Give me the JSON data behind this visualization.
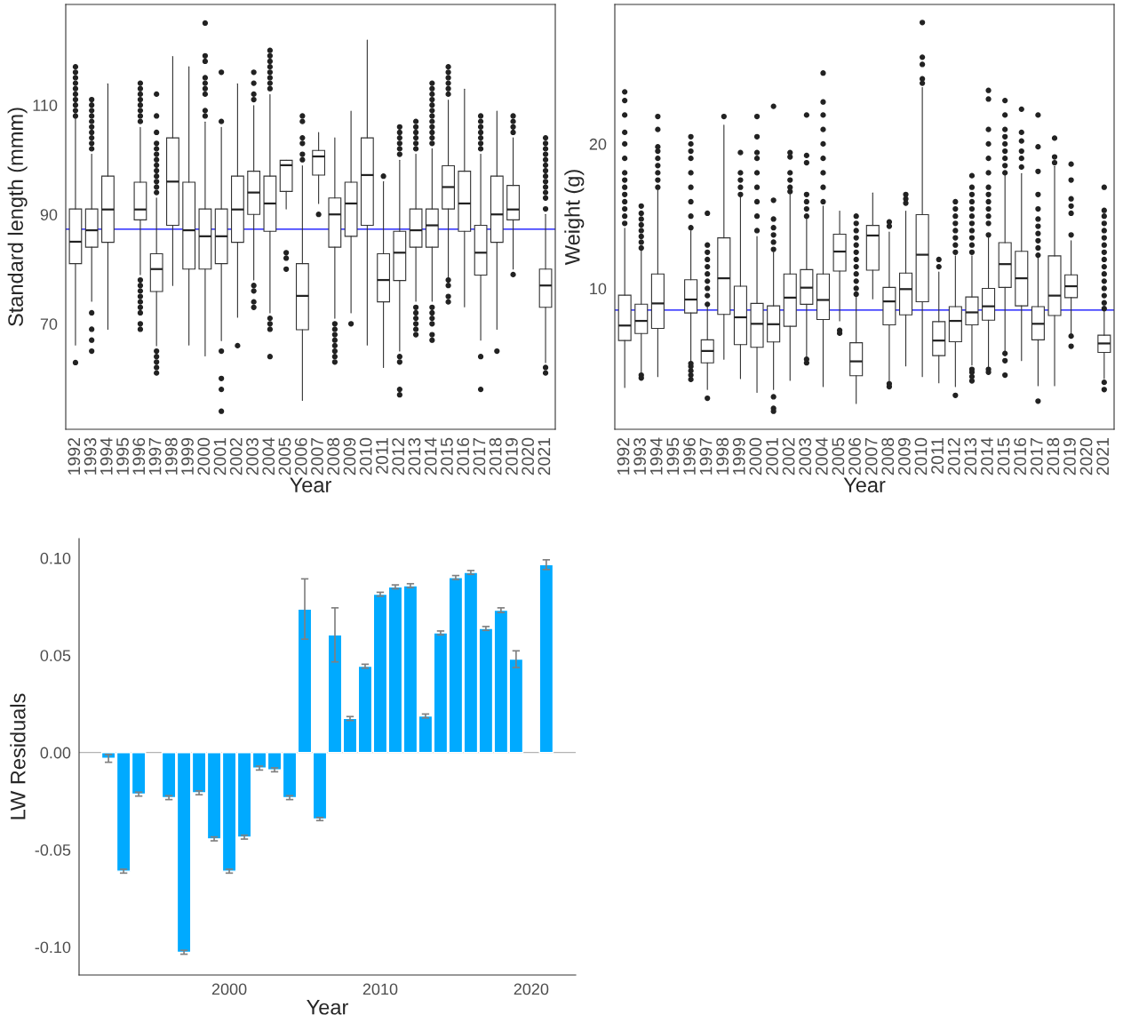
{
  "chart_data": [
    {
      "type": "box",
      "xlabel": "Year",
      "ylabel": "Standard length (mmm)",
      "grid": false,
      "categories": [
        "1992",
        "1993",
        "1994",
        "1995",
        "1996",
        "1997",
        "1998",
        "1999",
        "2000",
        "2001",
        "2002",
        "2003",
        "2004",
        "2005",
        "2006",
        "2007",
        "2008",
        "2009",
        "2010",
        "2011",
        "2012",
        "2013",
        "2014",
        "2015",
        "2016",
        "2017",
        "2018",
        "2019",
        "2020",
        "2021"
      ],
      "boxes": [
        {
          "low": 66.1,
          "q1": 81,
          "median": 85,
          "q3": 91,
          "high": 107.8,
          "outliers": [
            62.9,
            108,
            109,
            110,
            111,
            112,
            113,
            114,
            115,
            116,
            117
          ]
        },
        {
          "low": 74.1,
          "q1": 84,
          "median": 87.1,
          "q3": 91,
          "high": 101,
          "outliers": [
            65,
            67,
            69,
            72,
            102,
            103,
            104,
            105,
            106,
            107,
            108,
            109,
            110,
            111
          ]
        },
        {
          "low": 69,
          "q1": 84.9,
          "median": 90.9,
          "q3": 97,
          "high": 113.9
        },
        null,
        {
          "low": 79,
          "q1": 89,
          "median": 90.9,
          "q3": 95.9,
          "high": 105.9,
          "outliers": [
            69,
            70,
            72,
            73,
            74,
            75,
            76,
            77,
            78,
            107,
            108,
            109,
            110,
            111,
            112,
            113,
            114
          ]
        },
        {
          "low": 66,
          "q1": 75.9,
          "median": 80,
          "q3": 82.8,
          "high": 93,
          "outliers": [
            61,
            62,
            63,
            64,
            65,
            94,
            95,
            96,
            97,
            98,
            99,
            100,
            101,
            102,
            103,
            105,
            108,
            112
          ]
        },
        {
          "low": 77,
          "q1": 88,
          "median": 96,
          "q3": 104,
          "high": 118.9
        },
        {
          "low": 66.1,
          "q1": 80,
          "median": 87.1,
          "q3": 95.9,
          "high": 117
        },
        {
          "low": 64.1,
          "q1": 80,
          "median": 86,
          "q3": 91,
          "high": 106.9,
          "outliers": [
            108,
            109,
            112,
            113,
            114,
            115,
            118,
            119,
            125
          ]
        },
        {
          "low": 66.9,
          "q1": 81,
          "median": 86,
          "q3": 91,
          "high": 105.9,
          "outliers": [
            54,
            58,
            60,
            65,
            107,
            116
          ]
        },
        {
          "low": 71.2,
          "q1": 84.9,
          "median": 90.9,
          "q3": 97,
          "high": 113.9,
          "outliers": [
            66
          ]
        },
        {
          "low": 78,
          "q1": 90,
          "median": 94,
          "q3": 97.9,
          "high": 109.9,
          "outliers": [
            73,
            74,
            76,
            77,
            111,
            112,
            114,
            116
          ]
        },
        {
          "low": 72,
          "q1": 86.9,
          "median": 92,
          "q3": 97,
          "high": 111.9,
          "outliers": [
            64,
            69,
            70,
            71,
            113,
            114,
            115,
            116,
            117,
            118,
            119,
            120
          ]
        },
        {
          "low": 91,
          "q1": 94.2,
          "median": 99,
          "q3": 99.9,
          "high": 99.9,
          "outliers": [
            80,
            82,
            83
          ]
        },
        {
          "low": 56,
          "q1": 68.9,
          "median": 75.1,
          "q3": 81,
          "high": 98.9,
          "outliers": [
            100,
            101,
            103,
            104,
            107,
            108
          ]
        },
        {
          "low": 92,
          "q1": 97.2,
          "median": 100.6,
          "q3": 101.7,
          "high": 105,
          "outliers": [
            90
          ]
        },
        {
          "low": 71,
          "q1": 84,
          "median": 90,
          "q3": 93,
          "high": 104,
          "outliers": [
            63,
            64,
            65,
            66,
            67,
            68,
            69,
            70
          ]
        },
        {
          "low": 72,
          "q1": 86,
          "median": 92,
          "q3": 95.9,
          "high": 108.9,
          "outliers": [
            70
          ]
        },
        {
          "low": 66.1,
          "q1": 88,
          "median": 97.2,
          "q3": 104,
          "high": 121.9
        },
        {
          "low": 62,
          "q1": 74,
          "median": 78,
          "q3": 82.8,
          "high": 96,
          "outliers": [
            97
          ]
        },
        {
          "low": 65,
          "q1": 77.9,
          "median": 83,
          "q3": 86.9,
          "high": 99.9,
          "outliers": [
            57,
            58,
            63,
            64,
            101,
            102,
            103,
            104,
            105,
            106
          ]
        },
        {
          "low": 74.1,
          "q1": 84,
          "median": 87.1,
          "q3": 91,
          "high": 101,
          "outliers": [
            68,
            69,
            70,
            71,
            72,
            73,
            102,
            103,
            104,
            105,
            106,
            107
          ]
        },
        {
          "low": 74.1,
          "q1": 84,
          "median": 88,
          "q3": 91,
          "high": 102,
          "outliers": [
            67,
            68,
            70,
            71,
            72,
            73,
            103,
            104,
            105,
            106,
            107,
            108,
            109,
            110,
            111,
            112,
            113,
            114
          ]
        },
        {
          "low": 78,
          "q1": 91,
          "median": 95,
          "q3": 98.9,
          "high": 110.9,
          "outliers": [
            74,
            75,
            77,
            78,
            112,
            113,
            114,
            115,
            116,
            117
          ]
        },
        {
          "low": 73.1,
          "q1": 86.9,
          "median": 92,
          "q3": 97.9,
          "high": 112.9
        },
        {
          "low": 67,
          "q1": 78.9,
          "median": 83,
          "q3": 88,
          "high": 101,
          "outliers": [
            58,
            64,
            102,
            103,
            104,
            105,
            106,
            107,
            108
          ]
        },
        {
          "low": 69,
          "q1": 84.9,
          "median": 90,
          "q3": 97,
          "high": 108.9,
          "outliers": [
            65
          ]
        },
        {
          "low": 80,
          "q1": 89,
          "median": 90.9,
          "q3": 95.3,
          "high": 104,
          "outliers": [
            79,
            105,
            106,
            107,
            108
          ]
        },
        null,
        {
          "low": 62.9,
          "q1": 73,
          "median": 77,
          "q3": 80,
          "high": 90,
          "outliers": [
            61,
            62,
            91,
            93,
            94,
            95,
            96,
            97,
            98,
            99,
            100,
            101,
            102,
            103,
            104
          ]
        }
      ],
      "ylim": [
        50.7,
        128.4
      ],
      "yticks": [
        70,
        90,
        110
      ],
      "ref_lines": [
        {
          "axis": "y",
          "value": 87.3,
          "color": "#0000ff"
        }
      ]
    },
    {
      "type": "box",
      "xlabel": "Year",
      "ylabel": "Weight (g)",
      "grid": false,
      "categories": [
        "1992",
        "1993",
        "1994",
        "1995",
        "1996",
        "1997",
        "1998",
        "1999",
        "2000",
        "2001",
        "2002",
        "2003",
        "2004",
        "2005",
        "2006",
        "2007",
        "2008",
        "2009",
        "2010",
        "2011",
        "2012",
        "2013",
        "2014",
        "2015",
        "2016",
        "2017",
        "2018",
        "2019",
        "2020",
        "2021"
      ],
      "boxes": [
        {
          "low": 3.14,
          "q1": 6.39,
          "median": 7.43,
          "q3": 9.53,
          "high": 14.16,
          "outliers": [
            14.5,
            15,
            15.5,
            16,
            16.5,
            17,
            17.5,
            18,
            19,
            20,
            20.8,
            22,
            23,
            23.6
          ]
        },
        {
          "low": 4.2,
          "q1": 6.88,
          "median": 7.75,
          "q3": 8.91,
          "high": 12.6,
          "outliers": [
            3.8,
            4.0,
            12.8,
            13.2,
            13.6,
            14,
            14.4,
            14.8,
            15.2,
            15.7
          ]
        },
        {
          "low": 3.89,
          "q1": 7.23,
          "median": 8.96,
          "q3": 11.0,
          "high": 16.8,
          "outliers": [
            17,
            17.5,
            18,
            18.5,
            19,
            19.5,
            19.8,
            21,
            21.9
          ]
        },
        null,
        {
          "low": 4.9,
          "q1": 8.3,
          "median": 9.23,
          "q3": 10.6,
          "high": 14.0,
          "outliers": [
            3.7,
            4.0,
            4.3,
            4.6,
            4.8,
            14.2,
            15,
            16,
            17,
            18,
            19,
            19.5,
            20,
            20.5
          ]
        },
        {
          "low": 3.0,
          "q1": 4.85,
          "median": 5.67,
          "q3": 6.44,
          "high": 8.7,
          "outliers": [
            2.4,
            8.9,
            9.5,
            10,
            10.5,
            11,
            11.5,
            12,
            12.5,
            13,
            15.2
          ]
        },
        {
          "low": 5.1,
          "q1": 8.2,
          "median": 10.7,
          "q3": 13.5,
          "high": 21.3,
          "outliers": [
            21.9
          ]
        },
        {
          "low": 3.76,
          "q1": 6.11,
          "median": 8.0,
          "q3": 10.15,
          "high": 16.3,
          "outliers": [
            16.5,
            17,
            17.5,
            18,
            19.4
          ]
        },
        {
          "low": 2.8,
          "q1": 5.92,
          "median": 7.55,
          "q3": 8.96,
          "high": 13.6,
          "outliers": [
            14,
            15,
            16,
            17,
            18,
            19,
            19.4,
            20.5,
            21.9
          ]
        },
        {
          "low": 3.0,
          "q1": 6.29,
          "median": 7.52,
          "q3": 8.79,
          "high": 12.5,
          "outliers": [
            1.5,
            1.7,
            2.5,
            12.7,
            13.2,
            13.7,
            14.2,
            14.8,
            16.1,
            22.6
          ]
        },
        {
          "low": 3.64,
          "q1": 7.38,
          "median": 9.36,
          "q3": 11.0,
          "high": 16.5,
          "outliers": [
            16.7,
            17,
            17.5,
            18,
            19.1,
            19.4
          ]
        },
        {
          "low": 5.32,
          "q1": 8.9,
          "median": 10.05,
          "q3": 11.3,
          "high": 14.85,
          "outliers": [
            4.85,
            5.1,
            15,
            15.5,
            16,
            16.5,
            18.7,
            19.2,
            22
          ]
        },
        {
          "low": 3.2,
          "q1": 7.85,
          "median": 9.2,
          "q3": 11.0,
          "high": 15.7,
          "outliers": [
            16,
            17,
            18,
            19,
            20,
            21,
            22,
            22.9,
            24.9
          ]
        },
        {
          "low": 7.75,
          "q1": 11.2,
          "median": 12.55,
          "q3": 13.75,
          "high": 15.35,
          "outliers": [
            6.9,
            7.1
          ]
        },
        {
          "low": 2.03,
          "q1": 3.96,
          "median": 4.95,
          "q3": 6.24,
          "high": 9.53,
          "outliers": [
            9.6,
            10,
            10.5,
            11,
            11.5,
            12,
            12.5,
            13,
            13.5,
            14,
            14.5,
            15
          ]
        },
        {
          "low": 9.28,
          "q1": 11.26,
          "median": 13.66,
          "q3": 14.36,
          "high": 16.6
        },
        {
          "low": 3.5,
          "q1": 7.48,
          "median": 9.1,
          "q3": 10.07,
          "high": 13.9,
          "outliers": [
            3.2,
            3.4,
            14.3,
            14.6
          ]
        },
        {
          "low": 4.63,
          "q1": 8.17,
          "median": 9.95,
          "q3": 11.06,
          "high": 15.35,
          "outliers": [
            15.9,
            16.2,
            16.5
          ]
        },
        {
          "low": 3.89,
          "q1": 9.08,
          "median": 12.33,
          "q3": 15.1,
          "high": 23.9,
          "outliers": [
            24.2,
            24.5,
            25.5,
            26,
            28.4
          ]
        },
        {
          "low": 3.47,
          "q1": 5.35,
          "median": 6.39,
          "q3": 7.7,
          "high": 11.14,
          "outliers": [
            11.5,
            12
          ]
        },
        {
          "low": 3.2,
          "q1": 6.31,
          "median": 7.75,
          "q3": 8.74,
          "high": 12.25,
          "outliers": [
            2.6,
            12.5,
            13,
            13.5,
            14,
            14.5,
            15,
            15.5,
            16
          ]
        },
        {
          "low": 4.7,
          "q1": 7.48,
          "median": 8.34,
          "q3": 9.41,
          "high": 12.25,
          "outliers": [
            3.6,
            3.9,
            4.2,
            4.4,
            12.5,
            13,
            13.5,
            14,
            14.5,
            15,
            15.5,
            16,
            16.5,
            17,
            17.8
          ]
        },
        {
          "low": 4.58,
          "q1": 7.8,
          "median": 8.76,
          "q3": 10.0,
          "high": 13.5,
          "outliers": [
            4.2,
            4.4,
            13.7,
            14.5,
            15,
            15.5,
            16,
            16.5,
            17,
            18,
            19,
            20,
            21,
            23.1,
            23.7
          ]
        },
        {
          "low": 5.32,
          "q1": 10.07,
          "median": 11.68,
          "q3": 13.17,
          "high": 17.95,
          "outliers": [
            4,
            5,
            5.5,
            18,
            18.5,
            19,
            19.5,
            20,
            20.5,
            21,
            22,
            23
          ]
        },
        {
          "low": 5.0,
          "q1": 8.79,
          "median": 10.7,
          "q3": 12.57,
          "high": 17.95,
          "outliers": [
            18.4,
            19,
            19.5,
            20.2,
            20.8,
            22.4
          ]
        },
        {
          "low": 3.27,
          "q1": 6.44,
          "median": 7.55,
          "q3": 8.74,
          "high": 12.1,
          "outliers": [
            2.2,
            12.3,
            12.8,
            13.3,
            13.8,
            14.3,
            14.8,
            15.5,
            16.5,
            18.1,
            19.8,
            22
          ]
        },
        {
          "low": 3.27,
          "q1": 8.12,
          "median": 9.5,
          "q3": 12.25,
          "high": 18.44,
          "outliers": [
            18.7,
            19.1,
            20.4
          ]
        },
        {
          "low": 6.88,
          "q1": 9.36,
          "median": 10.15,
          "q3": 10.94,
          "high": 13.3,
          "outliers": [
            6,
            6.7,
            13.7,
            15.2,
            15.7,
            16.2,
            17.5,
            18.6
          ]
        },
        null,
        {
          "low": 3.76,
          "q1": 5.57,
          "median": 6.19,
          "q3": 6.76,
          "high": 8.42,
          "outliers": [
            3,
            3.5,
            8.6,
            9,
            9.5,
            10,
            10.5,
            11,
            11.5,
            12,
            12.5,
            13,
            13.5,
            14,
            14.5,
            15,
            15.4,
            17
          ]
        }
      ],
      "ylim": [
        0.25,
        29.65
      ],
      "yticks": [
        10,
        20
      ],
      "ref_lines": [
        {
          "axis": "y",
          "value": 8.5,
          "color": "#0000ff"
        }
      ]
    },
    {
      "type": "bar",
      "xlabel": "Year",
      "ylabel": "LW Residuals",
      "grid": false,
      "color": "#00aaff",
      "x": [
        1992,
        1993,
        1994,
        1996,
        1997,
        1998,
        1999,
        2000,
        2001,
        2002,
        2003,
        2004,
        2005,
        2006,
        2007,
        2008,
        2009,
        2010,
        2011,
        2012,
        2013,
        2014,
        2015,
        2016,
        2017,
        2018,
        2019,
        2021
      ],
      "values": [
        -0.003,
        -0.061,
        -0.0214,
        -0.0232,
        -0.1027,
        -0.0207,
        -0.0444,
        -0.061,
        -0.0435,
        -0.008,
        -0.0089,
        -0.0232,
        0.0738,
        -0.0342,
        0.0605,
        0.0175,
        0.0444,
        0.0814,
        0.0852,
        0.0858,
        0.0188,
        0.0615,
        0.09,
        0.0926,
        0.0638,
        0.0732,
        0.048,
        0.0966
      ],
      "errors": [
        0.002,
        0.001,
        0.001,
        0.001,
        0.001,
        0.001,
        0.001,
        0.001,
        0.001,
        0.001,
        0.001,
        0.001,
        0.0155,
        0.0008,
        0.0139,
        0.001,
        0.001,
        0.001,
        0.001,
        0.001,
        0.001,
        0.001,
        0.001,
        0.001,
        0.001,
        0.0012,
        0.0043,
        0.0025
      ],
      "xlim": [
        1990.05,
        2022.95
      ],
      "xticks": [
        2000,
        2010,
        2020
      ],
      "ylim": [
        -0.1144,
        0.11
      ],
      "yticks": [
        {
          "value": -0.1,
          "label": "-0.10"
        },
        {
          "value": -0.05,
          "label": "-0.05"
        },
        {
          "value": 0,
          "label": "0.00"
        },
        {
          "value": 0.05,
          "label": "0.05"
        },
        {
          "value": 0.1,
          "label": "0.10"
        }
      ],
      "ref_lines": [
        {
          "axis": "y",
          "value": 0,
          "color": "#b3b3b3"
        }
      ]
    }
  ]
}
